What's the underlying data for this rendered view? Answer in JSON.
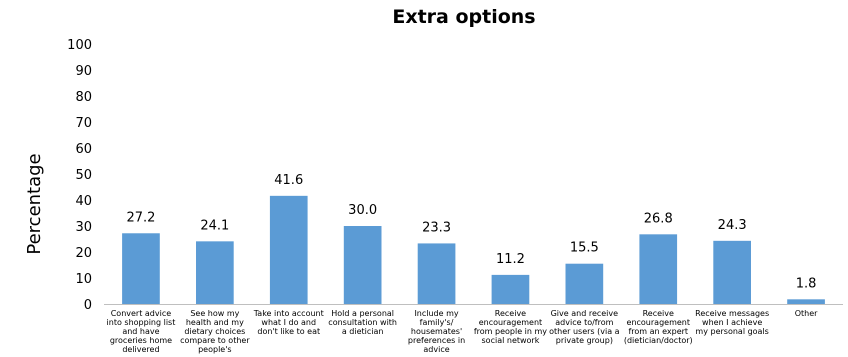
{
  "chart_data": {
    "type": "bar",
    "title": "Extra options",
    "xlabel": "",
    "ylabel": "Percentage",
    "ylim": [
      0,
      100
    ],
    "yticks": [
      0,
      10,
      20,
      30,
      40,
      50,
      60,
      70,
      80,
      90,
      100
    ],
    "grid": false,
    "legend": "none",
    "bar_color": "#5b9bd5",
    "categories": [
      [
        "Convert advice",
        "into shopping list",
        "and have",
        "groceries home",
        "delivered"
      ],
      [
        "See how my",
        "health and my",
        "dietary choices",
        "compare to other",
        "people's"
      ],
      [
        "Take into account",
        "what I do and",
        "don't like to eat"
      ],
      [
        "Hold a personal",
        "consultation with",
        "a dietician"
      ],
      [
        "Include my",
        "family's/",
        "housemates'",
        "preferences in",
        "advice"
      ],
      [
        "Receive",
        "encouragement",
        "from people in my",
        "social network"
      ],
      [
        "Give and receive",
        "advice to/from",
        "other users (via a",
        "private group)"
      ],
      [
        "Receive",
        "encouragement",
        "from an expert",
        "(dietician/doctor)"
      ],
      [
        "Receive messages",
        "when I achieve",
        "my personal goals"
      ],
      [
        "Other"
      ]
    ],
    "values": [
      27.2,
      24.1,
      41.6,
      30.0,
      23.3,
      11.2,
      15.5,
      26.8,
      24.3,
      1.8
    ],
    "value_labels": [
      "27.2",
      "24.1",
      "41.6",
      "30.0",
      "23.3",
      "11.2",
      "15.5",
      "26.8",
      "24.3",
      "1.8"
    ]
  }
}
